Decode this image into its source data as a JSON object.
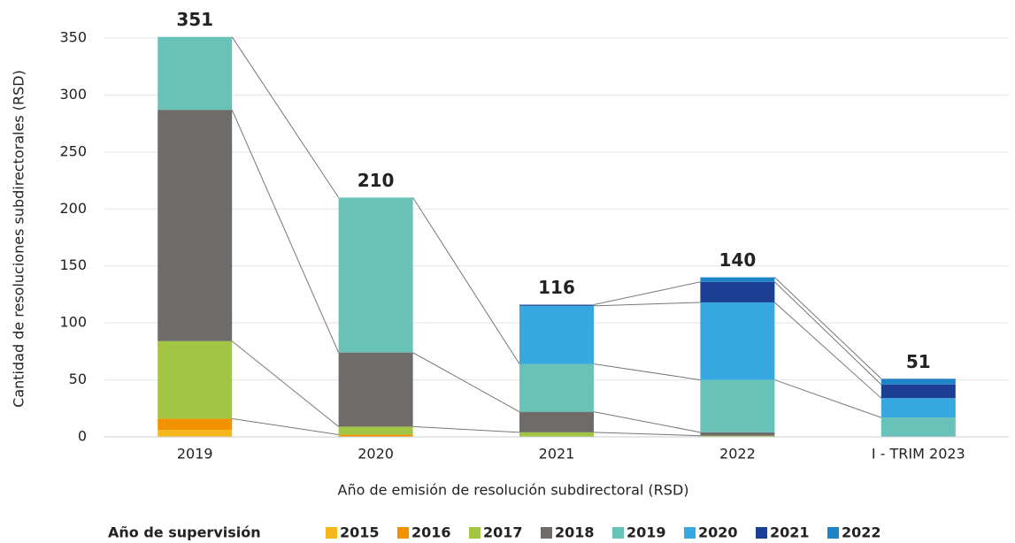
{
  "chart_data": {
    "type": "stacked_bar",
    "categories": [
      "2019",
      "2020",
      "2021",
      "2022",
      "I - TRIM 2023"
    ],
    "series": [
      {
        "name": "2015",
        "color": "#f5b81c",
        "values": [
          6,
          0,
          0,
          0,
          0
        ]
      },
      {
        "name": "2016",
        "color": "#f39200",
        "values": [
          10,
          2,
          0,
          0,
          0
        ]
      },
      {
        "name": "2017",
        "color": "#a2c544",
        "values": [
          68,
          7,
          4,
          1,
          0
        ]
      },
      {
        "name": "2018",
        "color": "#6f6b68",
        "values": [
          203,
          65,
          18,
          3,
          0
        ]
      },
      {
        "name": "2019",
        "color": "#68c2b7",
        "values": [
          64,
          136,
          42,
          46,
          17
        ]
      },
      {
        "name": "2020",
        "color": "#38a8e0",
        "values": [
          0,
          0,
          51,
          68,
          17
        ]
      },
      {
        "name": "2021",
        "color": "#1c3f94",
        "values": [
          0,
          0,
          1,
          18,
          12
        ]
      },
      {
        "name": "2022",
        "color": "#1f83c8",
        "values": [
          0,
          0,
          0,
          4,
          5
        ]
      }
    ],
    "totals": [
      351,
      210,
      116,
      140,
      51
    ],
    "ylim": [
      0,
      350
    ],
    "yticks": [
      0,
      50,
      100,
      150,
      200,
      250,
      300,
      350
    ],
    "grid": true,
    "xlabel": "Año de emisión de resolución subdirectoral (RSD)",
    "ylabel": "Cantidad de resoluciones subdirectorales (RSD)",
    "legend_title": "Año de supervisión",
    "legend": "bottom"
  }
}
